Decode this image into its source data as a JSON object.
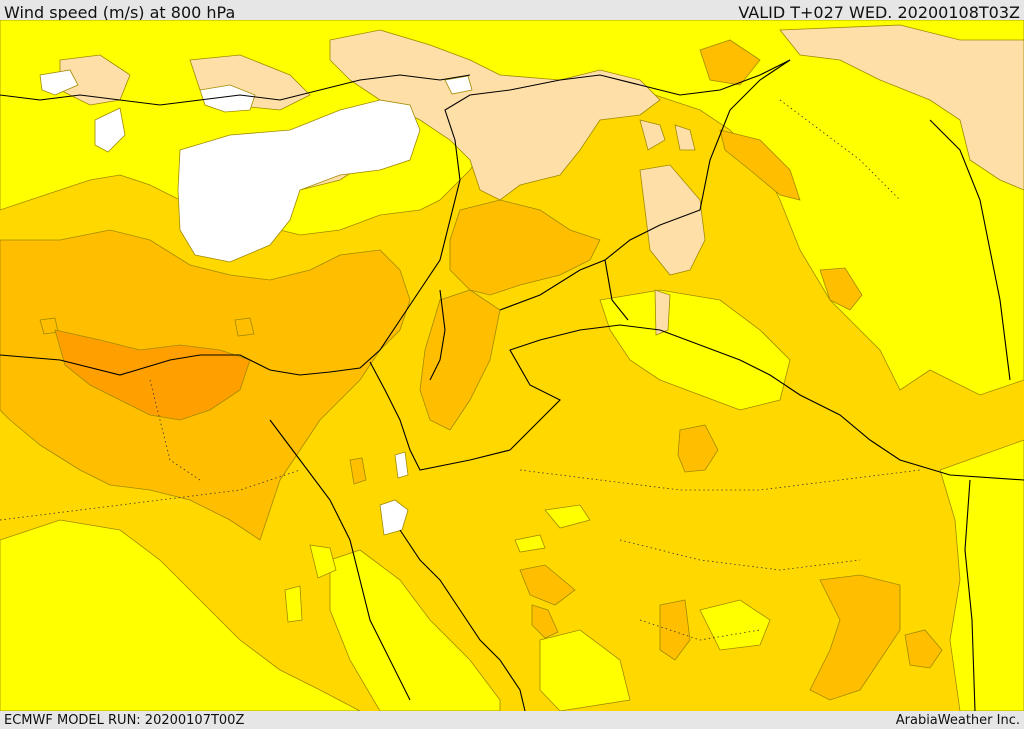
{
  "header": {
    "title": "Wind speed (m/s) at 800 hPa",
    "valid": "VALID T+027 WED. 20200108T03Z"
  },
  "footer": {
    "model_run": "ECMWF MODEL RUN: 20200107T00Z",
    "credit": "ArabiaWeather Inc."
  },
  "map": {
    "colors": {
      "calm": "#ffffff",
      "light": "#ffdfa8",
      "moderate": "#ffff00",
      "fresh": "#ffd800",
      "strong": "#ffbe00",
      "gale": "#ff9f00",
      "border": "#000000"
    }
  }
}
